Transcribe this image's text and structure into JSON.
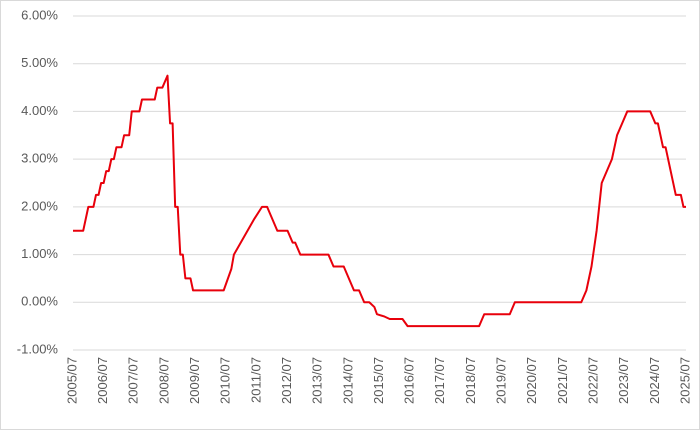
{
  "chart_data": {
    "type": "line",
    "x": [
      "2005/07",
      "2005/11",
      "2006/01",
      "2006/03",
      "2006/04",
      "2006/05",
      "2006/06",
      "2006/07",
      "2006/08",
      "2006/09",
      "2006/10",
      "2006/11",
      "2006/12",
      "2007/02",
      "2007/03",
      "2007/05",
      "2007/06",
      "2007/09",
      "2007/10",
      "2008/03",
      "2008/04",
      "2008/06",
      "2008/08",
      "2008/09",
      "2008/10",
      "2008/11",
      "2008/12",
      "2009/01",
      "2009/02",
      "2009/03",
      "2009/05",
      "2009/06",
      "2010/06",
      "2010/09",
      "2010/10",
      "2011/06",
      "2011/09",
      "2011/11",
      "2012/03",
      "2012/07",
      "2012/09",
      "2012/10",
      "2012/12",
      "2013/11",
      "2014/01",
      "2014/05",
      "2014/09",
      "2014/11",
      "2015/01",
      "2015/03",
      "2015/05",
      "2015/06",
      "2015/09",
      "2015/11",
      "2016/04",
      "2016/06",
      "2018/10",
      "2018/12",
      "2019/10",
      "2019/12",
      "2022/02",
      "2022/04",
      "2022/06",
      "2022/08",
      "2022/10",
      "2023/02",
      "2023/04",
      "2023/06",
      "2023/08",
      "2024/05",
      "2024/07",
      "2024/08",
      "2024/10",
      "2024/11",
      "2025/01",
      "2025/03",
      "2025/05",
      "2025/06",
      "2025/07"
    ],
    "series": [
      {
        "color": "#e8000b",
        "values": [
          1.5,
          1.5,
          2.0,
          2.0,
          2.25,
          2.25,
          2.5,
          2.5,
          2.75,
          2.75,
          3.0,
          3.0,
          3.25,
          3.25,
          3.5,
          3.5,
          4.0,
          4.0,
          4.25,
          4.25,
          4.5,
          4.5,
          4.75,
          3.75,
          3.75,
          2.0,
          2.0,
          1.0,
          1.0,
          0.5,
          0.5,
          0.25,
          0.25,
          0.7,
          1.0,
          1.75,
          2.0,
          2.0,
          1.5,
          1.5,
          1.25,
          1.25,
          1.0,
          1.0,
          0.75,
          0.75,
          0.25,
          0.25,
          0.0,
          0.0,
          -0.1,
          -0.25,
          -0.3,
          -0.35,
          -0.35,
          -0.5,
          -0.5,
          -0.25,
          -0.25,
          0.0,
          0.0,
          0.25,
          0.75,
          1.5,
          2.5,
          3.0,
          3.5,
          3.75,
          4.0,
          4.0,
          3.75,
          3.75,
          3.25,
          3.25,
          2.75,
          2.25,
          2.25,
          2.0,
          2.0
        ]
      }
    ],
    "xlim": [
      "2005/07",
      "2025/07"
    ],
    "xticks": [
      "2005/07",
      "2006/07",
      "2007/07",
      "2008/07",
      "2009/07",
      "2010/07",
      "2011/07",
      "2012/07",
      "2013/07",
      "2014/07",
      "2015/07",
      "2016/07",
      "2017/07",
      "2018/07",
      "2019/07",
      "2020/07",
      "2021/07",
      "2022/07",
      "2023/07",
      "2024/07",
      "2025/07"
    ],
    "ylim": [
      -1,
      6
    ],
    "yticks": [
      {
        "value": -1,
        "label": "-1.00%"
      },
      {
        "value": 0,
        "label": "0.00%"
      },
      {
        "value": 1,
        "label": "1.00%"
      },
      {
        "value": 2,
        "label": "2.00%"
      },
      {
        "value": 3,
        "label": "3.00%"
      },
      {
        "value": 4,
        "label": "4.00%"
      },
      {
        "value": 5,
        "label": "5.00%"
      },
      {
        "value": 6,
        "label": "6.00%"
      }
    ],
    "grid": true
  }
}
